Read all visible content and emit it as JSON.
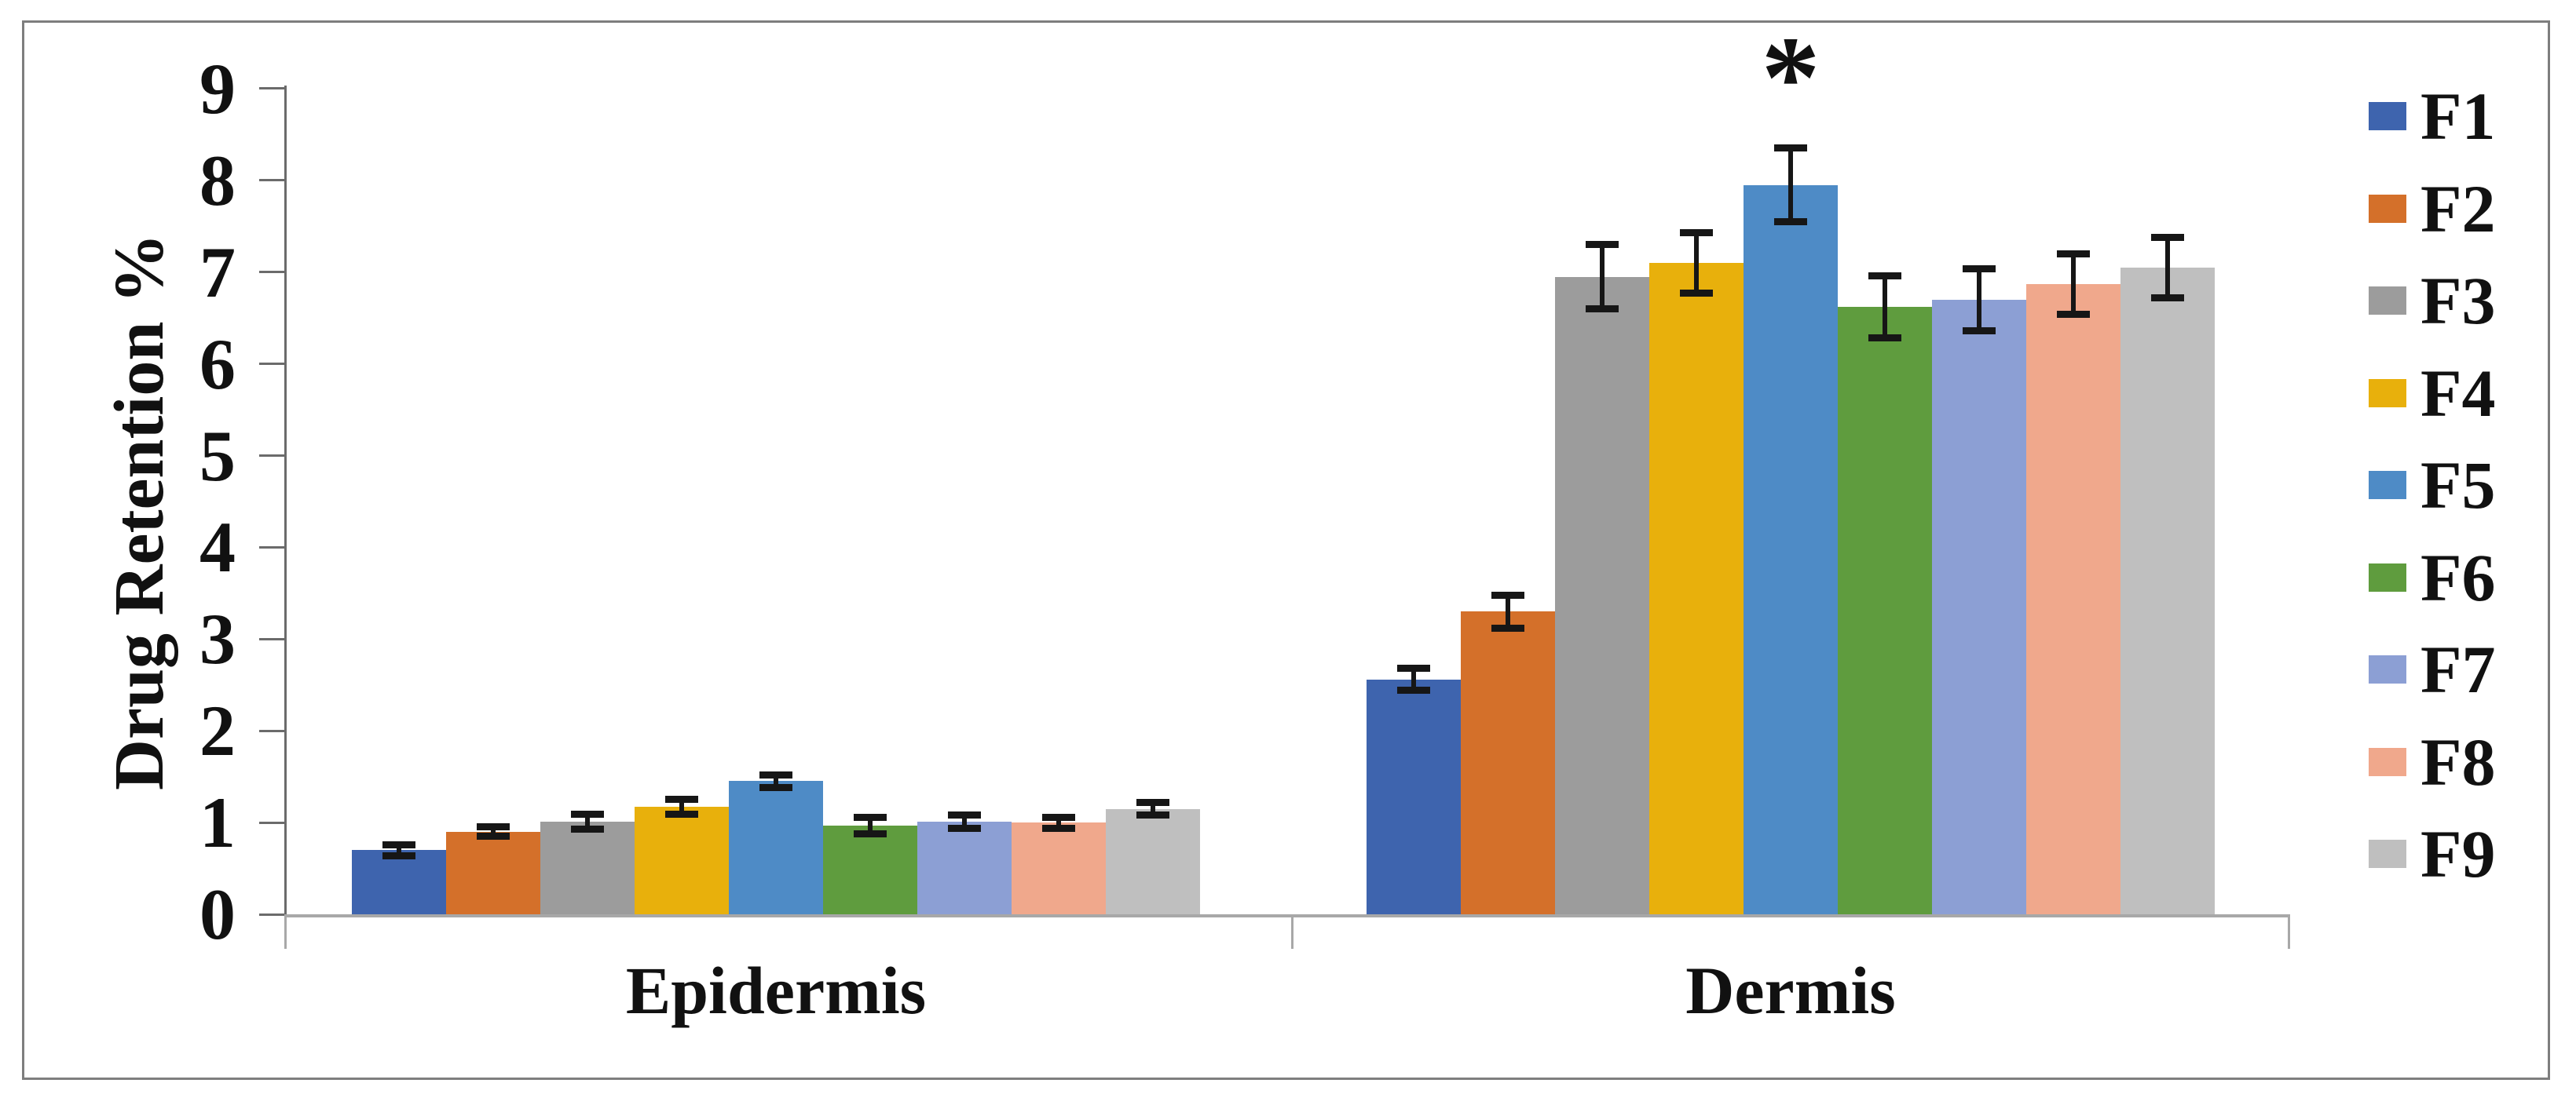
{
  "figure": {
    "background": "#ffffff",
    "border_color": "#7e7e7e"
  },
  "chart_data": {
    "type": "bar",
    "title": "",
    "xlabel": "",
    "ylabel": "Drug Retention %",
    "categories": [
      "Epidermis",
      "Dermis"
    ],
    "y_ticks": [
      0,
      1,
      2,
      3,
      4,
      5,
      6,
      7,
      8,
      9
    ],
    "ylim": [
      0,
      9
    ],
    "grid": false,
    "legend_position": "right",
    "axis_colors": {
      "y_axis_line": "#6b6b6b",
      "x_axis_line": "#a8a8a8",
      "text": "#111111",
      "error_bar": "#161616"
    },
    "annotation": {
      "text": "*",
      "series": "F5",
      "category": "Dermis"
    },
    "series": [
      {
        "name": "F1",
        "color": "#3e64ae",
        "values": [
          0.7,
          2.56
        ],
        "errors": [
          0.06,
          0.12
        ]
      },
      {
        "name": "F2",
        "color": "#d4702a",
        "values": [
          0.9,
          3.3
        ],
        "errors": [
          0.05,
          0.18
        ]
      },
      {
        "name": "F3",
        "color": "#9c9c9c",
        "values": [
          1.01,
          6.95
        ],
        "errors": [
          0.08,
          0.35
        ]
      },
      {
        "name": "F4",
        "color": "#e8b00c",
        "values": [
          1.17,
          7.1
        ],
        "errors": [
          0.08,
          0.33
        ]
      },
      {
        "name": "F5",
        "color": "#4e8bc6",
        "values": [
          1.45,
          7.95
        ],
        "errors": [
          0.07,
          0.4
        ]
      },
      {
        "name": "F6",
        "color": "#5f9c3e",
        "values": [
          0.97,
          6.62
        ],
        "errors": [
          0.09,
          0.34
        ]
      },
      {
        "name": "F7",
        "color": "#8c9fd4",
        "values": [
          1.01,
          6.7
        ],
        "errors": [
          0.07,
          0.34
        ]
      },
      {
        "name": "F8",
        "color": "#f0a88c",
        "values": [
          1.0,
          6.87
        ],
        "errors": [
          0.06,
          0.33
        ]
      },
      {
        "name": "F9",
        "color": "#bfbfbf",
        "values": [
          1.15,
          7.05
        ],
        "errors": [
          0.07,
          0.33
        ]
      }
    ]
  }
}
